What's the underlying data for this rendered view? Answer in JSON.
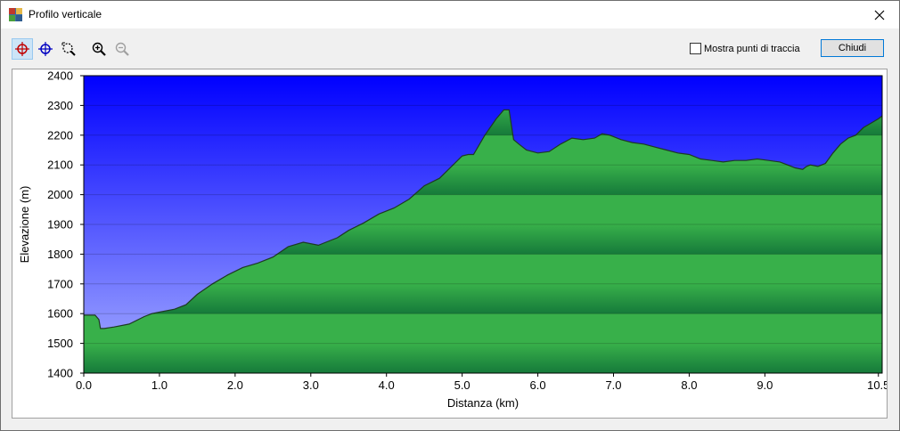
{
  "window": {
    "title": "Profilo verticale"
  },
  "toolbar": {
    "tools": [
      {
        "name": "tracking-tool-red",
        "active": true
      },
      {
        "name": "tracking-tool-blue",
        "active": false
      },
      {
        "name": "zoom-area-tool",
        "active": false
      },
      {
        "name": "zoom-in-tool",
        "active": false
      },
      {
        "name": "zoom-out-tool",
        "active": false,
        "disabled": true
      }
    ],
    "show_points_label": "Mostra punti di traccia",
    "show_points_checked": false,
    "close_label": "Chiudi"
  },
  "chart_data": {
    "type": "area",
    "xlabel": "Distanza  (km)",
    "ylabel": "Elevazione (m)",
    "xlim": [
      0,
      10.55
    ],
    "ylim": [
      1400,
      2400
    ],
    "xticks": [
      0.0,
      1.0,
      2.0,
      3.0,
      4.0,
      5.0,
      6.0,
      7.0,
      8.0,
      9.0,
      10.5
    ],
    "xtick_labels": [
      "0.0",
      "1.0",
      "2.0",
      "3.0",
      "4.0",
      "5.0",
      "6.0",
      "7.0",
      "8.0",
      "9.0",
      "10.5"
    ],
    "yticks": [
      1400,
      1500,
      1600,
      1700,
      1800,
      1900,
      2000,
      2100,
      2200,
      2300,
      2400
    ],
    "grid": true,
    "colors": {
      "sky_top": "#0000ff",
      "sky_bottom": "#a8b0ff",
      "fill_light": "#38b04a",
      "fill_dark": "#15793a",
      "line": "#1e3a22"
    },
    "series": [
      {
        "x": [
          0,
          0.15,
          0.2,
          0.22,
          0.27,
          0.4,
          0.6,
          0.8,
          0.9,
          1.0,
          1.2,
          1.35,
          1.5,
          1.7,
          1.9,
          2.1,
          2.3,
          2.5,
          2.7,
          2.9,
          3.1,
          3.2,
          3.35,
          3.5,
          3.7,
          3.9,
          4.1,
          4.3,
          4.5,
          4.7,
          4.9,
          5.0,
          5.08,
          5.15,
          5.3,
          5.45,
          5.55,
          5.62,
          5.68,
          5.75,
          5.85,
          6.0,
          6.15,
          6.3,
          6.45,
          6.6,
          6.75,
          6.85,
          6.95,
          7.1,
          7.25,
          7.4,
          7.55,
          7.7,
          7.85,
          8.0,
          8.15,
          8.3,
          8.45,
          8.6,
          8.75,
          8.9,
          9.05,
          9.2,
          9.3,
          9.4,
          9.5,
          9.55,
          9.6,
          9.7,
          9.8,
          9.9,
          10.0,
          10.1,
          10.2,
          10.3,
          10.4,
          10.5,
          10.55
        ],
        "y": [
          1595,
          1595,
          1580,
          1550,
          1550,
          1555,
          1565,
          1590,
          1600,
          1605,
          1615,
          1630,
          1665,
          1700,
          1730,
          1755,
          1770,
          1790,
          1825,
          1840,
          1830,
          1840,
          1855,
          1880,
          1905,
          1935,
          1955,
          1985,
          2030,
          2055,
          2105,
          2130,
          2135,
          2135,
          2200,
          2255,
          2285,
          2285,
          2185,
          2170,
          2150,
          2140,
          2145,
          2170,
          2190,
          2185,
          2190,
          2205,
          2200,
          2185,
          2175,
          2170,
          2160,
          2150,
          2140,
          2135,
          2120,
          2115,
          2110,
          2115,
          2115,
          2120,
          2115,
          2110,
          2100,
          2090,
          2085,
          2095,
          2100,
          2095,
          2105,
          2140,
          2170,
          2190,
          2200,
          2225,
          2240,
          2255,
          2265
        ]
      }
    ]
  }
}
